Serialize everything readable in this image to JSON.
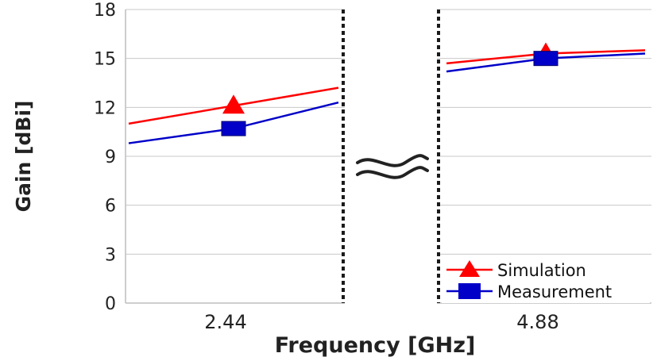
{
  "chart_data": {
    "type": "line",
    "xlabel": "Frequency [GHz]",
    "ylabel": "Gain [dBi]",
    "ylim": [
      0,
      18
    ],
    "yticks": [
      "0",
      "3",
      "6",
      "9",
      "12",
      "15",
      "18"
    ],
    "x_tick_labels": [
      "2.44",
      "4.88"
    ],
    "axis_break": true,
    "grid": "horizontal",
    "legend_position": "bottom-right",
    "panels": [
      {
        "x_tick": "2.44",
        "series": [
          {
            "name": "Simulation",
            "values": [
              11.0,
              12.1,
              13.2
            ]
          },
          {
            "name": "Measurement",
            "values": [
              9.8,
              10.7,
              12.3
            ]
          }
        ]
      },
      {
        "x_tick": "4.88",
        "series": [
          {
            "name": "Simulation",
            "values": [
              14.7,
              15.3,
              15.5
            ]
          },
          {
            "name": "Measurement",
            "values": [
              14.2,
              15.0,
              15.3
            ]
          }
        ]
      }
    ],
    "series_styles": [
      {
        "name": "Simulation",
        "color": "#ff0000",
        "marker": "triangle"
      },
      {
        "name": "Measurement",
        "color": "#0000c8",
        "marker": "square"
      }
    ],
    "break_symbol": "≈"
  }
}
